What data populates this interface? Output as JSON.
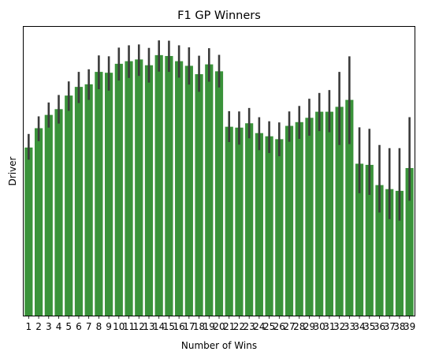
{
  "chart_data": {
    "type": "bar",
    "title": "F1 GP Winners",
    "xlabel": "Number of Wins",
    "ylabel": "Driver",
    "y_ticks_shown": false,
    "grid": false,
    "legend": "none",
    "bar_color": "#3a933a",
    "error_bar_color": "#3b3b3b",
    "frame_color": "#000000",
    "ylim": [
      0,
      100
    ],
    "categories": [
      "1",
      "2",
      "3",
      "4",
      "5",
      "6",
      "7",
      "8",
      "9",
      "10",
      "11",
      "12",
      "13",
      "14",
      "15",
      "16",
      "17",
      "18",
      "19",
      "20",
      "21",
      "22",
      "23",
      "24",
      "25",
      "26",
      "27",
      "28",
      "29",
      "30",
      "31",
      "32",
      "33",
      "34",
      "35",
      "36",
      "37",
      "38",
      "39"
    ],
    "values": [
      58.2,
      64.9,
      69.5,
      71.5,
      76.2,
      79.2,
      80.1,
      84.4,
      84.1,
      87.2,
      88.1,
      88.7,
      86.7,
      90.2,
      89.9,
      88.1,
      86.5,
      83.6,
      87.0,
      84.6,
      65.4,
      65.1,
      66.6,
      63.2,
      62.1,
      61.1,
      65.7,
      67.0,
      68.5,
      70.6,
      70.6,
      72.3,
      74.7,
      52.6,
      52.2,
      45.2,
      43.8,
      43.2,
      51.1
    ],
    "error_low": [
      54.0,
      60.4,
      65.1,
      66.5,
      70.9,
      73.6,
      74.7,
      78.4,
      77.9,
      81.4,
      82.3,
      83.0,
      80.7,
      84.5,
      84.4,
      82.4,
      80.0,
      77.5,
      81.0,
      79.0,
      60.1,
      59.2,
      61.4,
      57.3,
      56.3,
      55.2,
      60.2,
      61.2,
      62.3,
      63.9,
      63.5,
      59.1,
      59.4,
      42.4,
      41.8,
      35.7,
      33.4,
      32.9,
      39.8
    ],
    "error_high": [
      62.9,
      69.0,
      73.8,
      76.4,
      81.1,
      84.4,
      85.3,
      90.1,
      89.8,
      92.8,
      93.6,
      93.9,
      92.7,
      95.3,
      95.2,
      93.6,
      92.9,
      90.0,
      92.6,
      90.3,
      70.8,
      70.7,
      71.9,
      68.7,
      67.3,
      66.9,
      70.7,
      72.6,
      75.1,
      77.1,
      78.1,
      84.4,
      89.8,
      65.2,
      64.7,
      59.1,
      58.0,
      58.0,
      68.7
    ]
  }
}
